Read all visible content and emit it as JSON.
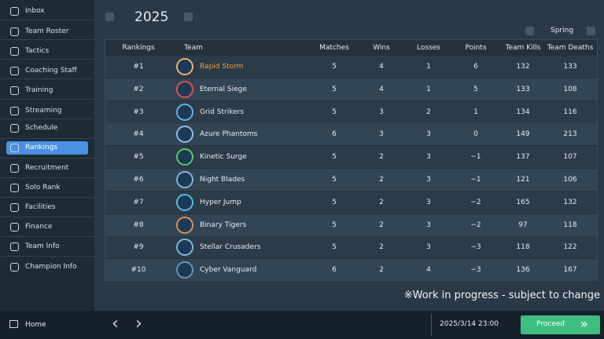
{
  "sidebar": {
    "items": [
      "Inbox",
      "Team Roster",
      "Tactics",
      "Coaching Staff",
      "Training",
      "Streaming",
      "Schedule",
      "Rankings",
      "Recruitment",
      "Solo Rank",
      "Facilities",
      "Finance",
      "Team Info",
      "Champion Info"
    ],
    "active": "Rankings",
    "home": "Home"
  },
  "header": {
    "year": "2025",
    "season": "Spring"
  },
  "table": {
    "columns": [
      "Rankings",
      "Team",
      "Matches",
      "Wins",
      "Losses",
      "Points",
      "Team Kills",
      "Team Deaths"
    ],
    "rows": [
      [
        "#1",
        "Rapid Storm",
        "5",
        "4",
        "1",
        "6",
        "132",
        "133"
      ],
      [
        "#2",
        "Eternal Siege",
        "5",
        "4",
        "1",
        "5",
        "133",
        "108"
      ],
      [
        "#3",
        "Grid Strikers",
        "5",
        "3",
        "2",
        "1",
        "134",
        "116"
      ],
      [
        "#4",
        "Azure Phantoms",
        "6",
        "3",
        "3",
        "0",
        "149",
        "213"
      ],
      [
        "#5",
        "Kinetic Surge",
        "5",
        "2",
        "3",
        "−1",
        "137",
        "107"
      ],
      [
        "#6",
        "Night Blades",
        "5",
        "2",
        "3",
        "−1",
        "121",
        "106"
      ],
      [
        "#7",
        "Hyper Jump",
        "5",
        "2",
        "3",
        "−2",
        "165",
        "132"
      ],
      [
        "#8",
        "Binary Tigers",
        "5",
        "2",
        "3",
        "−2",
        "97",
        "118"
      ],
      [
        "#9",
        "Stellar Crusaders",
        "5",
        "2",
        "3",
        "−3",
        "118",
        "122"
      ],
      [
        "#10",
        "Cyber Vanguard",
        "6",
        "2",
        "4",
        "−3",
        "136",
        "167"
      ]
    ]
  },
  "note": "※Work in progress - subject to change",
  "footer": {
    "date": "2025/3/14 23:00",
    "button": "Proceed"
  }
}
